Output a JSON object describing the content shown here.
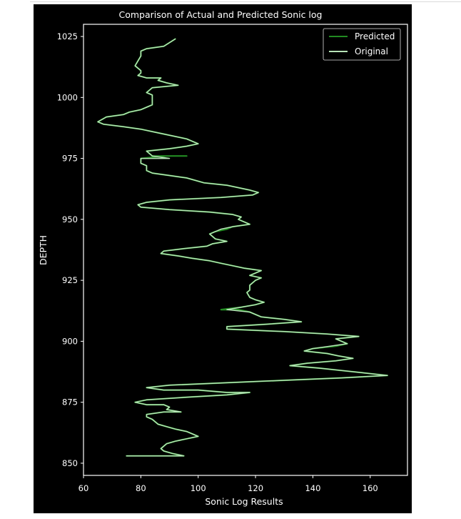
{
  "chart_data": {
    "type": "line",
    "title": "Comparison of Actual and Predicted Sonic log",
    "xlabel": "Sonic Log Results",
    "ylabel": "DEPTH",
    "xlim": [
      60,
      173
    ],
    "ylim": [
      845,
      1030
    ],
    "xticks": [
      60,
      80,
      100,
      120,
      140,
      160
    ],
    "yticks": [
      850,
      875,
      900,
      925,
      950,
      975,
      1000,
      1025
    ],
    "grid": false,
    "legend_position": "top-right",
    "colors": {
      "background": "#000000",
      "axes": "#ffffff",
      "predicted": "#228b22",
      "original": "#b7e3b7"
    },
    "series": [
      {
        "name": "Predicted",
        "points": [
          [
            92,
            1024
          ],
          [
            88,
            1021
          ],
          [
            82,
            1020
          ],
          [
            80,
            1019
          ],
          [
            80,
            1017
          ],
          [
            79,
            1015
          ],
          [
            78,
            1013
          ],
          [
            80,
            1011
          ],
          [
            80,
            1010
          ],
          [
            79,
            1009
          ],
          [
            82,
            1008
          ],
          [
            87,
            1008
          ],
          [
            86,
            1007
          ],
          [
            89,
            1006
          ],
          [
            93,
            1005
          ],
          [
            84,
            1004
          ],
          [
            82,
            1002
          ],
          [
            84,
            1001
          ],
          [
            84,
            999
          ],
          [
            84,
            997
          ],
          [
            82,
            996
          ],
          [
            80,
            995
          ],
          [
            76,
            994
          ],
          [
            74,
            993
          ],
          [
            68,
            992
          ],
          [
            65,
            990
          ],
          [
            67,
            989
          ],
          [
            74,
            988
          ],
          [
            80,
            987
          ],
          [
            84,
            986
          ],
          [
            88,
            985
          ],
          [
            92,
            984
          ],
          [
            96,
            983
          ],
          [
            100,
            981
          ],
          [
            96,
            980
          ],
          [
            90,
            979
          ],
          [
            82,
            978
          ],
          [
            84,
            976
          ],
          [
            92,
            976
          ],
          [
            96,
            976
          ],
          [
            89,
            976
          ],
          [
            80,
            975
          ],
          [
            80,
            973
          ],
          [
            82,
            972
          ],
          [
            82,
            970
          ],
          [
            84,
            969
          ],
          [
            90,
            968
          ],
          [
            96,
            967
          ],
          [
            102,
            965
          ],
          [
            110,
            964
          ],
          [
            118,
            962
          ],
          [
            121,
            961
          ],
          [
            119,
            960
          ],
          [
            108,
            959
          ],
          [
            90,
            958
          ],
          [
            82,
            957
          ],
          [
            79,
            956
          ],
          [
            80,
            955
          ],
          [
            90,
            954
          ],
          [
            104,
            953
          ],
          [
            112,
            952
          ],
          [
            115,
            951
          ],
          [
            114,
            950
          ],
          [
            118,
            948
          ],
          [
            112,
            947
          ],
          [
            110,
            946
          ],
          [
            106,
            945
          ],
          [
            104,
            944
          ],
          [
            106,
            942
          ],
          [
            110,
            941
          ],
          [
            105,
            940
          ],
          [
            103,
            939
          ],
          [
            95,
            938
          ],
          [
            88,
            937
          ],
          [
            87,
            936
          ],
          [
            93,
            935
          ],
          [
            98,
            934
          ],
          [
            104,
            933
          ],
          [
            108,
            932
          ],
          [
            112,
            931
          ],
          [
            116,
            930
          ],
          [
            122,
            929
          ],
          [
            120,
            928
          ],
          [
            118,
            927
          ],
          [
            122,
            926
          ],
          [
            120,
            925
          ],
          [
            118,
            923
          ],
          [
            118,
            921
          ],
          [
            117,
            920
          ],
          [
            118,
            918
          ],
          [
            120,
            917
          ],
          [
            123,
            916
          ],
          [
            120,
            915
          ],
          [
            115,
            914
          ],
          [
            108,
            913
          ],
          [
            114,
            913
          ],
          [
            118,
            912
          ],
          [
            122,
            910
          ],
          [
            130,
            909
          ],
          [
            136,
            908
          ],
          [
            124,
            907
          ],
          [
            110,
            906
          ],
          [
            110,
            905
          ],
          [
            130,
            904
          ],
          [
            145,
            903
          ],
          [
            156,
            902
          ],
          [
            148,
            901
          ],
          [
            150,
            900
          ],
          [
            152,
            899
          ],
          [
            148,
            898
          ],
          [
            140,
            897
          ],
          [
            137,
            896
          ],
          [
            145,
            895
          ],
          [
            149,
            894
          ],
          [
            154,
            893
          ],
          [
            148,
            892
          ],
          [
            138,
            891
          ],
          [
            132,
            890
          ],
          [
            142,
            889
          ],
          [
            150,
            888
          ],
          [
            158,
            887
          ],
          [
            166,
            886
          ],
          [
            150,
            885
          ],
          [
            130,
            884
          ],
          [
            110,
            883
          ],
          [
            90,
            882
          ],
          [
            82,
            881
          ],
          [
            88,
            880
          ],
          [
            100,
            880
          ],
          [
            110,
            879
          ],
          [
            118,
            879
          ],
          [
            110,
            878
          ],
          [
            95,
            877
          ],
          [
            82,
            876
          ],
          [
            78,
            875
          ],
          [
            82,
            874
          ],
          [
            88,
            874
          ],
          [
            90,
            873
          ],
          [
            89,
            872
          ],
          [
            94,
            871
          ],
          [
            88,
            871
          ],
          [
            82,
            870
          ],
          [
            82,
            869
          ],
          [
            84,
            868
          ],
          [
            86,
            866
          ],
          [
            89,
            865
          ],
          [
            92,
            864
          ],
          [
            96,
            863
          ],
          [
            98,
            862
          ],
          [
            100,
            861
          ],
          [
            96,
            860
          ],
          [
            92,
            859
          ],
          [
            89,
            858
          ],
          [
            88,
            857
          ],
          [
            87,
            856
          ],
          [
            88,
            855
          ],
          [
            91,
            854
          ],
          [
            95,
            853
          ],
          [
            86,
            853
          ],
          [
            75,
            853
          ]
        ]
      },
      {
        "name": "Original",
        "points": [
          [
            92,
            1024
          ],
          [
            88,
            1021
          ],
          [
            82,
            1020
          ],
          [
            80,
            1019
          ],
          [
            80,
            1017
          ],
          [
            79,
            1015
          ],
          [
            78,
            1013
          ],
          [
            80,
            1011
          ],
          [
            80,
            1010
          ],
          [
            79,
            1009
          ],
          [
            82,
            1008
          ],
          [
            87,
            1008
          ],
          [
            86,
            1007
          ],
          [
            89,
            1006
          ],
          [
            93,
            1005
          ],
          [
            84,
            1004
          ],
          [
            82,
            1002
          ],
          [
            84,
            1001
          ],
          [
            84,
            999
          ],
          [
            84,
            997
          ],
          [
            82,
            996
          ],
          [
            80,
            995
          ],
          [
            76,
            994
          ],
          [
            74,
            993
          ],
          [
            68,
            992
          ],
          [
            65,
            990
          ],
          [
            67,
            989
          ],
          [
            74,
            988
          ],
          [
            80,
            987
          ],
          [
            84,
            986
          ],
          [
            88,
            985
          ],
          [
            92,
            984
          ],
          [
            96,
            983
          ],
          [
            100,
            981
          ],
          [
            96,
            980
          ],
          [
            90,
            979
          ],
          [
            82,
            978
          ],
          [
            84,
            976
          ],
          [
            90,
            975
          ],
          [
            84,
            975
          ],
          [
            80,
            975
          ],
          [
            80,
            973
          ],
          [
            82,
            972
          ],
          [
            82,
            970
          ],
          [
            84,
            969
          ],
          [
            90,
            968
          ],
          [
            96,
            967
          ],
          [
            102,
            965
          ],
          [
            110,
            964
          ],
          [
            118,
            962
          ],
          [
            121,
            961
          ],
          [
            119,
            960
          ],
          [
            108,
            959
          ],
          [
            90,
            958
          ],
          [
            82,
            957
          ],
          [
            79,
            956
          ],
          [
            80,
            955
          ],
          [
            90,
            954
          ],
          [
            104,
            953
          ],
          [
            112,
            952
          ],
          [
            115,
            951
          ],
          [
            114,
            950
          ],
          [
            118,
            948
          ],
          [
            112,
            947
          ],
          [
            108,
            946
          ],
          [
            106,
            945
          ],
          [
            104,
            944
          ],
          [
            106,
            942
          ],
          [
            110,
            941
          ],
          [
            105,
            940
          ],
          [
            103,
            939
          ],
          [
            95,
            938
          ],
          [
            88,
            937
          ],
          [
            87,
            936
          ],
          [
            93,
            935
          ],
          [
            98,
            934
          ],
          [
            104,
            933
          ],
          [
            108,
            932
          ],
          [
            112,
            931
          ],
          [
            116,
            930
          ],
          [
            122,
            929
          ],
          [
            120,
            928
          ],
          [
            118,
            927
          ],
          [
            122,
            926
          ],
          [
            120,
            925
          ],
          [
            118,
            923
          ],
          [
            118,
            921
          ],
          [
            117,
            920
          ],
          [
            118,
            918
          ],
          [
            120,
            917
          ],
          [
            123,
            916
          ],
          [
            120,
            915
          ],
          [
            115,
            914
          ],
          [
            110,
            913
          ],
          [
            118,
            912
          ],
          [
            122,
            910
          ],
          [
            130,
            909
          ],
          [
            136,
            908
          ],
          [
            124,
            907
          ],
          [
            110,
            906
          ],
          [
            110,
            905
          ],
          [
            130,
            904
          ],
          [
            145,
            903
          ],
          [
            156,
            902
          ],
          [
            148,
            901
          ],
          [
            150,
            900
          ],
          [
            152,
            899
          ],
          [
            146,
            898
          ],
          [
            140,
            897
          ],
          [
            137,
            896
          ],
          [
            145,
            895
          ],
          [
            149,
            894
          ],
          [
            154,
            893
          ],
          [
            148,
            892
          ],
          [
            138,
            891
          ],
          [
            132,
            890
          ],
          [
            142,
            889
          ],
          [
            150,
            888
          ],
          [
            158,
            887
          ],
          [
            166,
            886
          ],
          [
            150,
            885
          ],
          [
            130,
            884
          ],
          [
            110,
            883
          ],
          [
            90,
            882
          ],
          [
            82,
            881
          ],
          [
            88,
            880
          ],
          [
            100,
            880
          ],
          [
            110,
            879
          ],
          [
            118,
            879
          ],
          [
            110,
            878
          ],
          [
            95,
            877
          ],
          [
            82,
            876
          ],
          [
            78,
            875
          ],
          [
            82,
            874
          ],
          [
            88,
            874
          ],
          [
            90,
            873
          ],
          [
            89,
            872
          ],
          [
            94,
            871
          ],
          [
            88,
            871
          ],
          [
            82,
            870
          ],
          [
            82,
            869
          ],
          [
            84,
            868
          ],
          [
            86,
            866
          ],
          [
            89,
            865
          ],
          [
            92,
            864
          ],
          [
            96,
            863
          ],
          [
            98,
            862
          ],
          [
            100,
            861
          ],
          [
            96,
            860
          ],
          [
            92,
            859
          ],
          [
            89,
            858
          ],
          [
            88,
            857
          ],
          [
            87,
            856
          ],
          [
            88,
            855
          ],
          [
            91,
            854
          ],
          [
            95,
            853
          ],
          [
            86,
            853
          ],
          [
            75,
            853
          ]
        ]
      }
    ]
  }
}
